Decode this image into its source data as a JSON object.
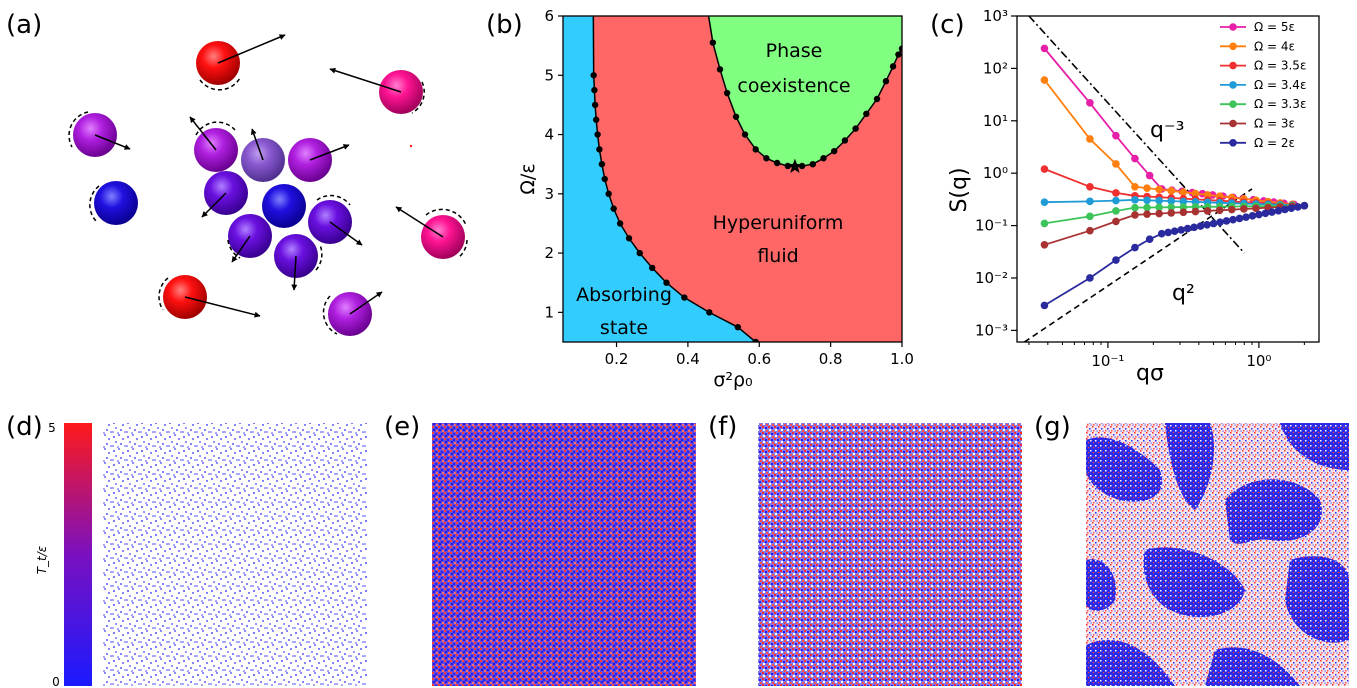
{
  "labels": {
    "a": "(a)",
    "b": "(b)",
    "c": "(c)",
    "d": "(d)",
    "e": "(e)",
    "f": "(f)",
    "g": "(g)"
  },
  "colors": {
    "absorbing": "#33ccff",
    "fluid": "#ff6666",
    "coexistence": "#80ff80",
    "low": "#1a1aff",
    "high": "#ff1a1a"
  },
  "colorbar": {
    "label": "T_t/ε",
    "max_label": "5",
    "min_label": "0"
  },
  "chart_data": [
    {
      "panel": "b",
      "type": "area",
      "xlabel": "σ²ρ₀",
      "ylabel": "Ω/ε",
      "xlim": [
        0.05,
        1.0
      ],
      "ylim": [
        0.5,
        6.0
      ],
      "xticks": [
        "0.2",
        "0.4",
        "0.6",
        "0.8",
        "1.0"
      ],
      "yticks": [
        "1",
        "2",
        "3",
        "4",
        "5",
        "6"
      ],
      "regions": [
        "Absorbing state",
        "Hyperuniform fluid",
        "Phase coexistence"
      ],
      "region_lines": {
        "absorbing": [
          "Absorbing",
          "state"
        ],
        "fluid": [
          "Hyperuniform",
          "fluid"
        ],
        "coexistence": [
          "Phase",
          "coexistence"
        ]
      },
      "absorbing_boundary": {
        "x": [
          0.59,
          0.54,
          0.46,
          0.39,
          0.34,
          0.3,
          0.265,
          0.235,
          0.21,
          0.192,
          0.178,
          0.167,
          0.159,
          0.152,
          0.147,
          0.143,
          0.14,
          0.138,
          0.136,
          0.135
        ],
        "y": [
          0.5,
          0.75,
          1.0,
          1.25,
          1.5,
          1.75,
          2.0,
          2.25,
          2.5,
          2.75,
          3.0,
          3.25,
          3.5,
          3.75,
          4.0,
          4.25,
          4.5,
          4.75,
          5.0,
          6.0
        ]
      },
      "coexistence_boundary": {
        "x": [
          0.458,
          0.47,
          0.49,
          0.51,
          0.535,
          0.56,
          0.59,
          0.62,
          0.65,
          0.68,
          0.7,
          0.72,
          0.75,
          0.78,
          0.81,
          0.84,
          0.87,
          0.9,
          0.93,
          0.955,
          0.975,
          0.99,
          1.0
        ],
        "y": [
          6.0,
          5.55,
          5.1,
          4.7,
          4.3,
          4.0,
          3.75,
          3.6,
          3.52,
          3.47,
          3.46,
          3.47,
          3.5,
          3.6,
          3.72,
          3.9,
          4.1,
          4.35,
          4.6,
          4.9,
          5.15,
          5.35,
          5.45
        ]
      },
      "critical_point": {
        "x": 0.7,
        "y": 3.46
      }
    },
    {
      "panel": "c",
      "type": "line",
      "xlabel": "qσ",
      "ylabel": "S(q)",
      "log_x": true,
      "log_y": true,
      "xlim": [
        0.025,
        2.5
      ],
      "ylim": [
        0.0006,
        1000
      ],
      "xticks": [
        {
          "v": 0.1,
          "t": "10⁻¹"
        },
        {
          "v": 1,
          "t": "10⁰"
        }
      ],
      "yticks": [
        {
          "v": 0.001,
          "t": "10⁻³"
        },
        {
          "v": 0.01,
          "t": "10⁻²"
        },
        {
          "v": 0.1,
          "t": "10⁻¹"
        },
        {
          "v": 1,
          "t": "10⁰"
        },
        {
          "v": 10,
          "t": "10¹"
        },
        {
          "v": 100,
          "t": "10²"
        },
        {
          "v": 1000,
          "t": "10³"
        }
      ],
      "guides": [
        {
          "label": "q⁻³",
          "style": "dashdot",
          "x": [
            0.03,
            0.8
          ],
          "y": [
            1000,
            0.03
          ]
        },
        {
          "label": "q²",
          "style": "dashed",
          "x": [
            0.028,
            0.9
          ],
          "y": [
            0.0006,
            0.5
          ]
        }
      ],
      "guide_labels": {
        "q3": "q⁻³",
        "q2": "q²"
      },
      "series": [
        {
          "name": "Ω = 5ε",
          "color": "#e61ea8",
          "x": [
            0.038,
            0.076,
            0.113,
            0.151,
            0.189,
            0.227
          ],
          "y": [
            240,
            22,
            5.2,
            1.9,
            0.9,
            0.5
          ]
        },
        {
          "name": "Ω = 4ε",
          "color": "#ff7f0e",
          "x": [
            0.038,
            0.076,
            0.113,
            0.151
          ],
          "y": [
            60,
            4.5,
            1.5,
            0.55
          ]
        },
        {
          "name": "Ω = 3.5ε",
          "color": "#f03030",
          "x": [
            0.038,
            0.076,
            0.113,
            0.151
          ],
          "y": [
            1.2,
            0.55,
            0.42,
            0.37
          ]
        },
        {
          "name": "Ω = 3.4ε",
          "color": "#1f9bd6",
          "x": [
            0.038,
            0.076,
            0.113,
            0.151
          ],
          "y": [
            0.28,
            0.29,
            0.3,
            0.31
          ]
        },
        {
          "name": "Ω = 3.3ε",
          "color": "#3cc45a",
          "x": [
            0.038,
            0.076,
            0.113,
            0.151
          ],
          "y": [
            0.11,
            0.15,
            0.19,
            0.22
          ]
        },
        {
          "name": "Ω = 3ε",
          "color": "#a83232",
          "x": [
            0.038,
            0.076,
            0.113,
            0.151
          ],
          "y": [
            0.043,
            0.08,
            0.12,
            0.16
          ]
        },
        {
          "name": "Ω = 2ε",
          "color": "#2a2a9e",
          "x": [
            0.038,
            0.076,
            0.113,
            0.151,
            0.189,
            0.227
          ],
          "y": [
            0.003,
            0.01,
            0.022,
            0.038,
            0.055,
            0.07
          ]
        }
      ],
      "converged": {
        "x_start": 0.18,
        "x_end": 2.0,
        "y_end": 0.24
      }
    }
  ]
}
